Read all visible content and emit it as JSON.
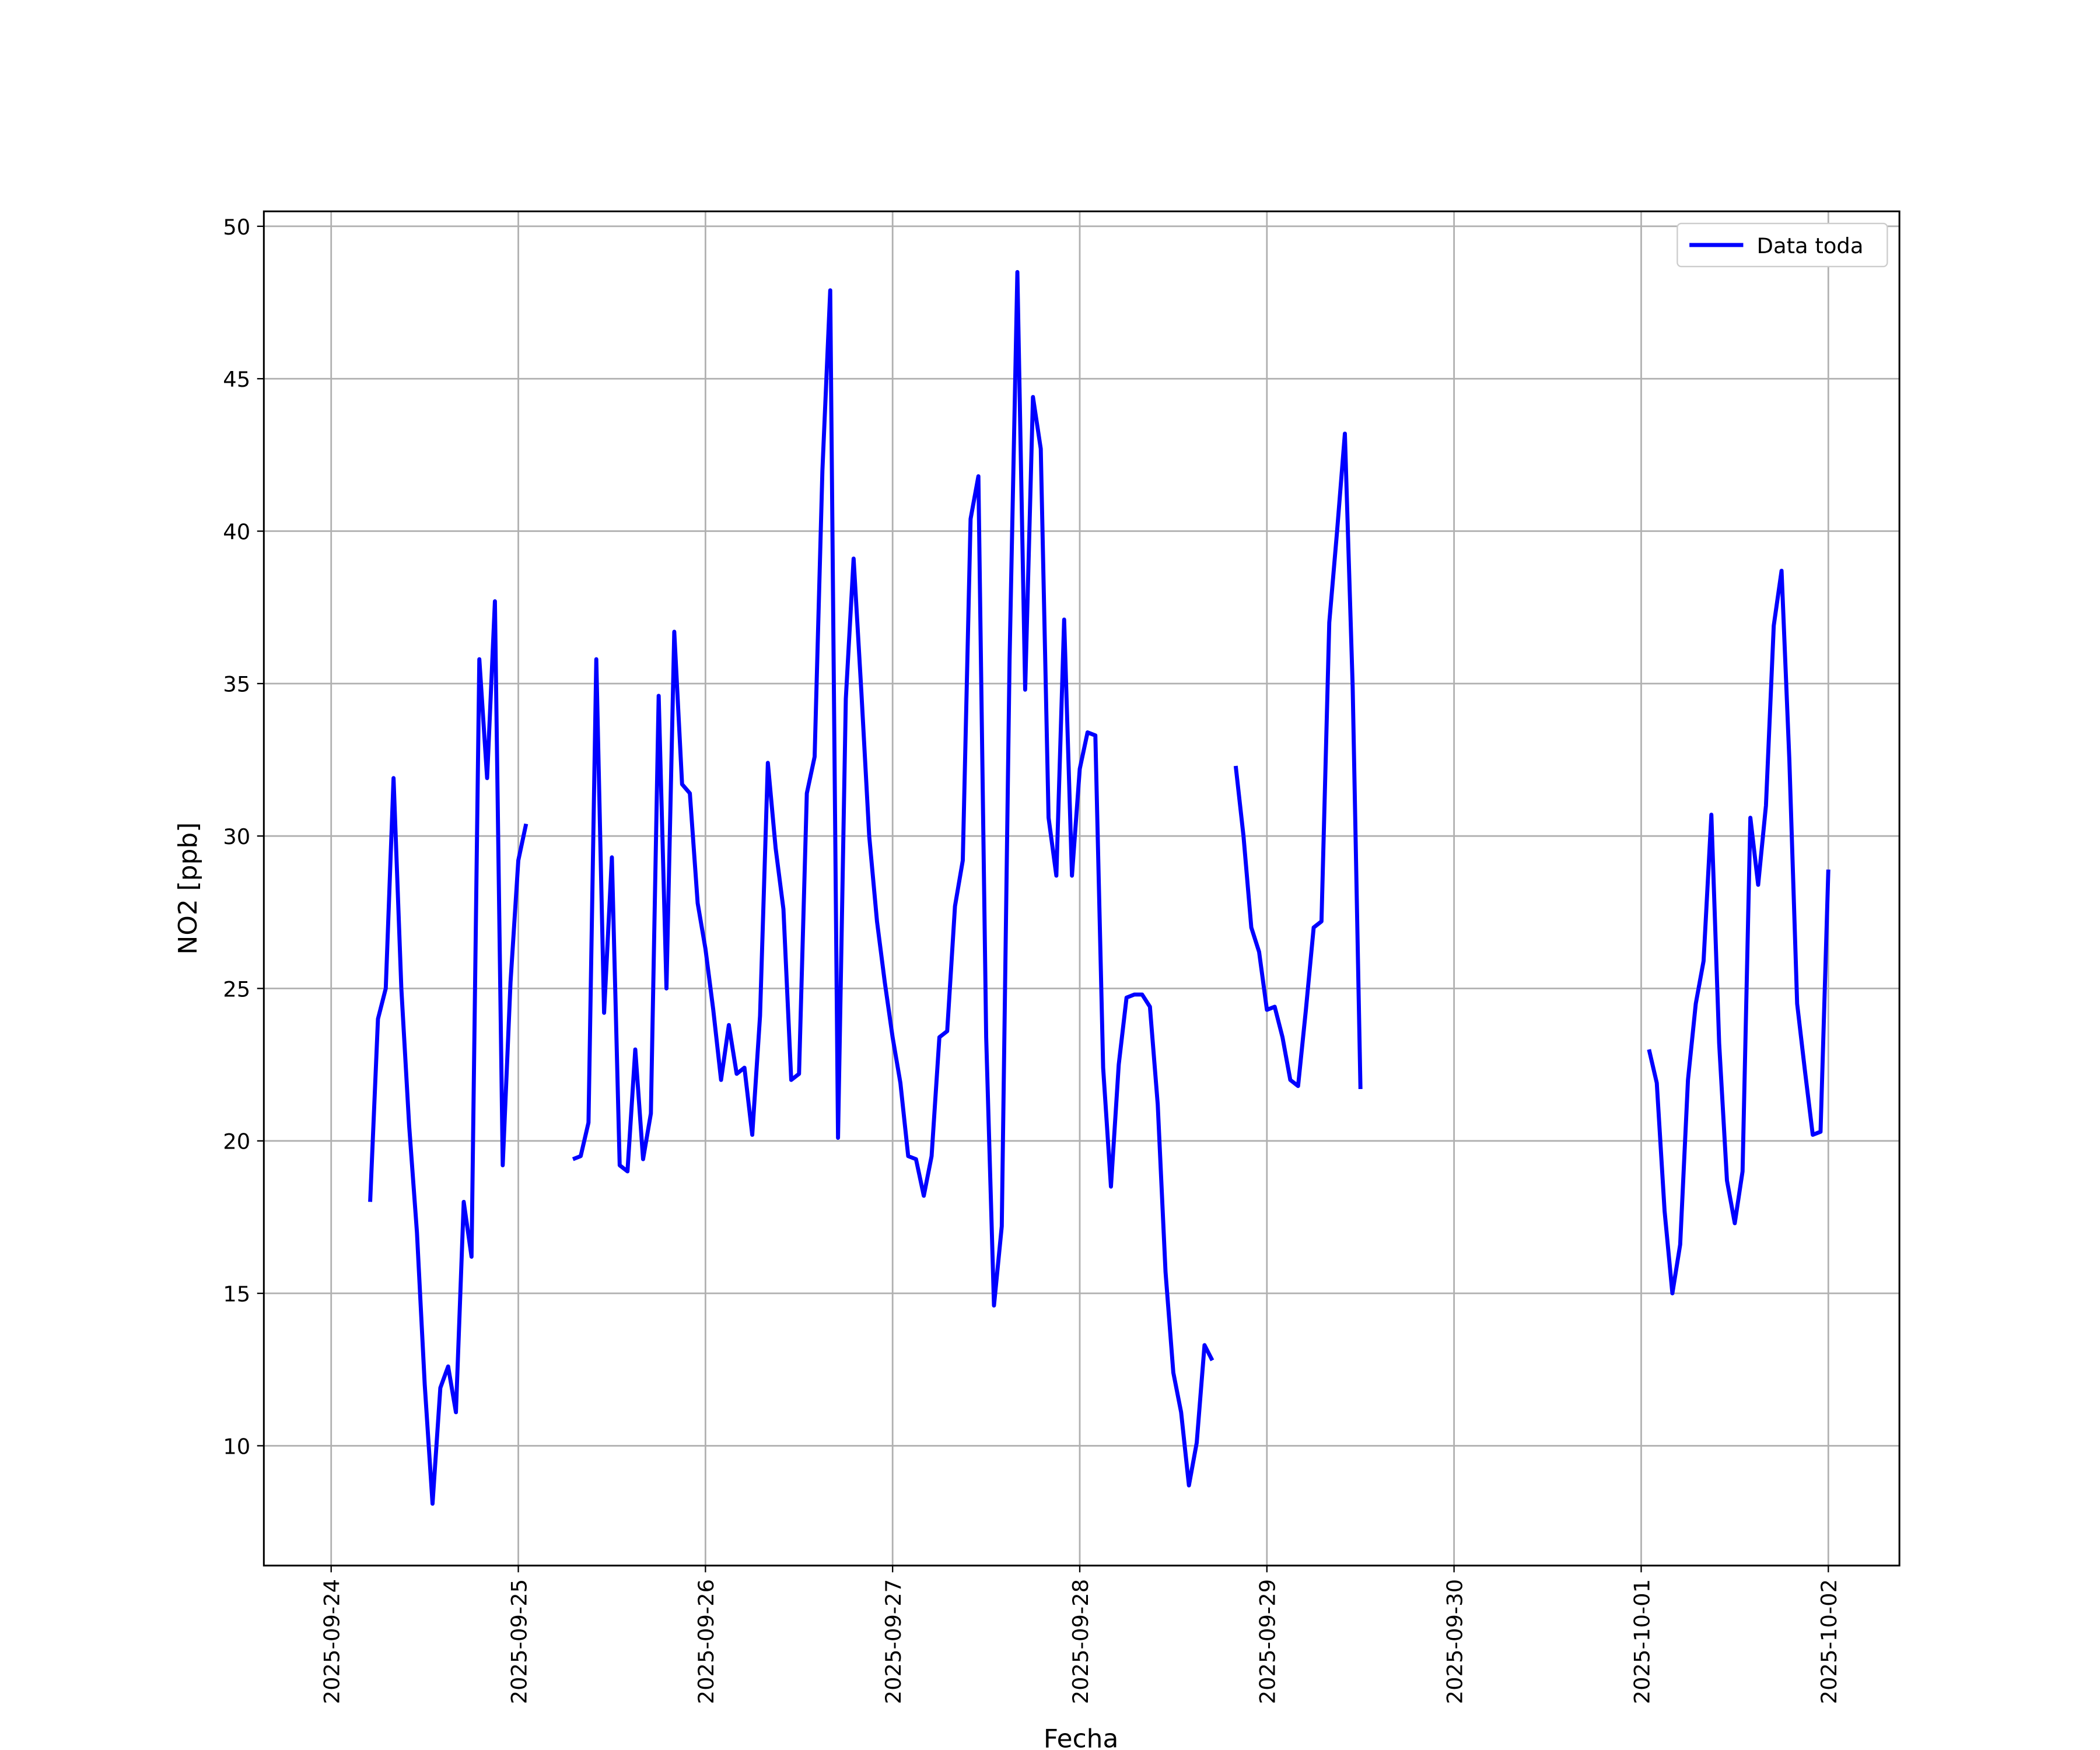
{
  "chart_data": {
    "type": "line",
    "xlabel": "Fecha",
    "ylabel": "NO2 [ppb]",
    "x": [
      "2025-09-24 05:00",
      "2025-09-24 06:00",
      "2025-09-24 07:00",
      "2025-09-24 08:00",
      "2025-09-24 09:00",
      "2025-09-24 10:00",
      "2025-09-24 11:00",
      "2025-09-24 12:00",
      "2025-09-24 13:00",
      "2025-09-24 14:00",
      "2025-09-24 15:00",
      "2025-09-24 16:00",
      "2025-09-24 17:00",
      "2025-09-24 18:00",
      "2025-09-24 19:00",
      "2025-09-24 20:00",
      "2025-09-24 21:00",
      "2025-09-24 22:00",
      "2025-09-24 23:00",
      "2025-09-25 00:00",
      "2025-09-25 01:00",
      "2025-09-25 02:00",
      "2025-09-25 07:00",
      "2025-09-25 08:00",
      "2025-09-25 09:00",
      "2025-09-25 10:00",
      "2025-09-25 11:00",
      "2025-09-25 12:00",
      "2025-09-25 13:00",
      "2025-09-25 14:00",
      "2025-09-25 15:00",
      "2025-09-25 16:00",
      "2025-09-25 17:00",
      "2025-09-25 18:00",
      "2025-09-25 19:00",
      "2025-09-25 20:00",
      "2025-09-25 21:00",
      "2025-09-25 22:00",
      "2025-09-25 23:00",
      "2025-09-26 00:00",
      "2025-09-26 01:00",
      "2025-09-26 02:00",
      "2025-09-26 03:00",
      "2025-09-26 04:00",
      "2025-09-26 05:00",
      "2025-09-26 06:00",
      "2025-09-26 07:00",
      "2025-09-26 08:00",
      "2025-09-26 09:00",
      "2025-09-26 10:00",
      "2025-09-26 11:00",
      "2025-09-26 12:00",
      "2025-09-26 13:00",
      "2025-09-26 14:00",
      "2025-09-26 15:00",
      "2025-09-26 16:00",
      "2025-09-26 17:00",
      "2025-09-26 18:00",
      "2025-09-26 19:00",
      "2025-09-26 20:00",
      "2025-09-26 21:00",
      "2025-09-26 22:00",
      "2025-09-26 23:00",
      "2025-09-27 00:00",
      "2025-09-27 01:00",
      "2025-09-27 02:00",
      "2025-09-27 03:00",
      "2025-09-27 04:00",
      "2025-09-27 05:00",
      "2025-09-27 06:00",
      "2025-09-27 07:00",
      "2025-09-27 08:00",
      "2025-09-27 09:00",
      "2025-09-27 10:00",
      "2025-09-27 11:00",
      "2025-09-27 12:00",
      "2025-09-27 13:00",
      "2025-09-27 14:00",
      "2025-09-27 15:00",
      "2025-09-27 16:00",
      "2025-09-27 17:00",
      "2025-09-27 18:00",
      "2025-09-27 19:00",
      "2025-09-27 20:00",
      "2025-09-27 21:00",
      "2025-09-27 22:00",
      "2025-09-27 23:00",
      "2025-09-28 00:00",
      "2025-09-28 01:00",
      "2025-09-28 02:00",
      "2025-09-28 03:00",
      "2025-09-28 04:00",
      "2025-09-28 05:00",
      "2025-09-28 06:00",
      "2025-09-28 07:00",
      "2025-09-28 08:00",
      "2025-09-28 09:00",
      "2025-09-28 10:00",
      "2025-09-28 11:00",
      "2025-09-28 12:00",
      "2025-09-28 13:00",
      "2025-09-28 14:00",
      "2025-09-28 15:00",
      "2025-09-28 16:00",
      "2025-09-28 17:00",
      "2025-09-28 18:00",
      "2025-09-28 20:00",
      "2025-09-28 21:00",
      "2025-09-28 22:00",
      "2025-09-28 23:00",
      "2025-09-29 00:00",
      "2025-09-29 01:00",
      "2025-09-29 02:00",
      "2025-09-29 03:00",
      "2025-09-29 04:00",
      "2025-09-29 05:00",
      "2025-09-29 06:00",
      "2025-09-29 07:00",
      "2025-09-29 08:00",
      "2025-09-29 09:00",
      "2025-09-29 10:00",
      "2025-09-29 11:00",
      "2025-09-29 12:00",
      "2025-09-29 13:00",
      "2025-10-01 01:00",
      "2025-10-01 02:00",
      "2025-10-01 03:00",
      "2025-10-01 04:00",
      "2025-10-01 05:00",
      "2025-10-01 06:00",
      "2025-10-01 07:00",
      "2025-10-01 08:00",
      "2025-10-01 09:00",
      "2025-10-01 10:00",
      "2025-10-01 11:00",
      "2025-10-01 12:00",
      "2025-10-01 13:00",
      "2025-10-01 14:00",
      "2025-10-01 15:00",
      "2025-10-01 16:00",
      "2025-10-01 17:00",
      "2025-10-01 18:00",
      "2025-10-01 19:00",
      "2025-10-01 20:00",
      "2025-10-01 21:00",
      "2025-10-01 22:00",
      "2025-10-01 23:00",
      "2025-10-02 00:00"
    ],
    "series": [
      {
        "name": "Data toda",
        "color": "#0000ff",
        "values": [
          18.0,
          24.0,
          25.0,
          31.9,
          25.0,
          20.5,
          17.0,
          12.0,
          8.1,
          11.9,
          12.6,
          11.1,
          18.0,
          16.2,
          35.8,
          31.9,
          37.7,
          19.2,
          25.2,
          29.2,
          30.4,
          null,
          19.4,
          19.5,
          20.6,
          35.8,
          24.2,
          29.3,
          19.2,
          19.0,
          23.0,
          19.4,
          20.9,
          34.6,
          25.0,
          36.7,
          31.7,
          31.4,
          27.8,
          26.3,
          24.3,
          22.0,
          23.8,
          22.2,
          22.4,
          20.2,
          24.1,
          32.4,
          29.6,
          27.6,
          22.0,
          22.2,
          31.4,
          32.6,
          42.0,
          47.9,
          20.1,
          34.5,
          39.1,
          34.7,
          30.0,
          27.2,
          25.2,
          23.4,
          21.9,
          19.5,
          19.4,
          18.2,
          19.5,
          23.4,
          23.6,
          27.7,
          29.2,
          40.4,
          41.8,
          23.4,
          14.6,
          17.2,
          35.8,
          48.5,
          34.8,
          44.4,
          42.7,
          30.6,
          28.7,
          37.1,
          28.7,
          32.2,
          33.4,
          33.3,
          22.4,
          18.5,
          22.5,
          24.7,
          24.8,
          24.8,
          24.4,
          21.2,
          15.7,
          12.4,
          11.1,
          8.7,
          10.1,
          13.3,
          12.8,
          null,
          32.3,
          30.0,
          27.0,
          26.2,
          24.3,
          24.4,
          23.4,
          22.0,
          21.8,
          24.3,
          27.0,
          27.2,
          37.0,
          40.0,
          43.2,
          34.9,
          21.7,
          null,
          23.0,
          21.9,
          17.7,
          15.0,
          16.6,
          22.0,
          24.5,
          25.9,
          30.7,
          23.2,
          18.7,
          17.3,
          19.0,
          30.6,
          28.4,
          31.0,
          36.9,
          38.7,
          32.5,
          24.5,
          22.3,
          20.2,
          20.3,
          28.9
        ]
      }
    ],
    "xlim": [
      "2025-09-23 15:22",
      "2025-10-02 09:07"
    ],
    "xticks": [
      "2025-09-24",
      "2025-09-25",
      "2025-09-26",
      "2025-09-27",
      "2025-09-28",
      "2025-09-29",
      "2025-09-30",
      "2025-10-01",
      "2025-10-02"
    ],
    "ylim": [
      6.07,
      50.49
    ],
    "yticks": [
      10,
      15,
      20,
      25,
      30,
      35,
      40,
      45,
      50
    ],
    "grid": true,
    "legend": "upper right"
  }
}
